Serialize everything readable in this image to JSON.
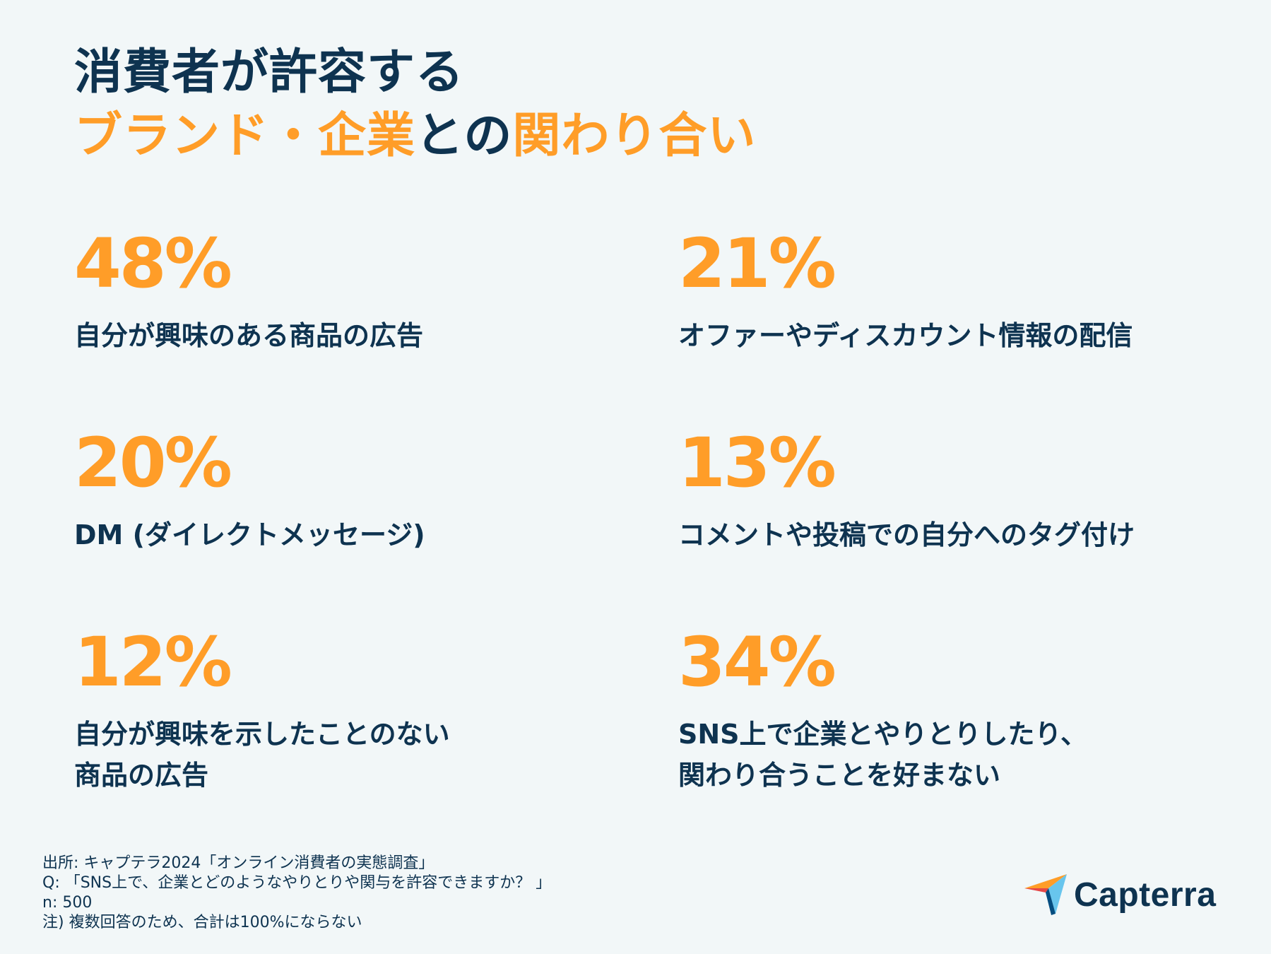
{
  "title": {
    "line1": "消費者が許容する",
    "line2_part1": "ブランド・企業",
    "line2_part2": "との",
    "line2_part3": "関わり合い"
  },
  "chart_data": {
    "type": "table",
    "title": "消費者が許容するブランド・企業との関わり合い",
    "items": [
      {
        "value": "48%",
        "label": "自分が興味のある商品の広告"
      },
      {
        "value": "21%",
        "label": "オファーやディスカウント情報の配信"
      },
      {
        "value": "20%",
        "label": "DM (ダイレクトメッセージ)"
      },
      {
        "value": "13%",
        "label": "コメントや投稿での自分へのタグ付け"
      },
      {
        "value": "12%",
        "label": "自分が興味を示したことのない\n商品の広告"
      },
      {
        "value": "34%",
        "label": "SNS上で企業とやりとりしたり、\n関わり合うことを好まない"
      }
    ]
  },
  "footer": {
    "source": "出所: キャプテラ2024「オンライン消費者の実態調査」",
    "question": "Q: 「SNS上で、企業とどのようなやりとりや関与を許容できますか？ 」",
    "n": "n: 500",
    "note": "注)  複数回答のため、合計は100%にならない"
  },
  "logo": {
    "name": "Capterra",
    "icon": "capterra-arrow-icon"
  },
  "colors": {
    "accent": "#ff9d28",
    "text": "#0e3350",
    "background": "#f2f7f8"
  }
}
